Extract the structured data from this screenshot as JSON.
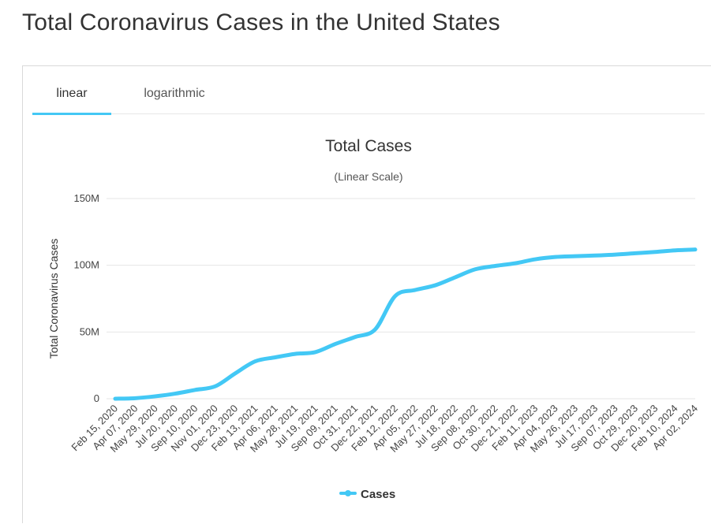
{
  "page": {
    "title": "Total Coronavirus Cases in the United States"
  },
  "tabs": [
    {
      "label": "linear",
      "active": true
    },
    {
      "label": "logarithmic",
      "active": false
    }
  ],
  "colors": {
    "accent": "#43c8f5",
    "gridline": "#e6e6e6",
    "text": "#333333"
  },
  "chart_data": {
    "type": "line",
    "title": "Total Cases",
    "subtitle": "(Linear Scale)",
    "xlabel": "",
    "ylabel": "Total Coronavirus Cases",
    "ylim": [
      0,
      150000000
    ],
    "y_ticks": [
      {
        "value": 0,
        "label": "0"
      },
      {
        "value": 50000000,
        "label": "50M"
      },
      {
        "value": 100000000,
        "label": "100M"
      },
      {
        "value": 150000000,
        "label": "150M"
      }
    ],
    "x_tick_labels": [
      "Feb 15, 2020",
      "Apr 07, 2020",
      "May 29, 2020",
      "Jul 20, 2020",
      "Sep 10, 2020",
      "Nov 01, 2020",
      "Dec 23, 2020",
      "Feb 13, 2021",
      "Apr 06, 2021",
      "May 28, 2021",
      "Jul 19, 2021",
      "Sep 09, 2021",
      "Oct 31, 2021",
      "Dec 22, 2021",
      "Feb 12, 2022",
      "Apr 05, 2022",
      "May 27, 2022",
      "Jul 18, 2022",
      "Sep 08, 2022",
      "Oct 30, 2022",
      "Dec 21, 2022",
      "Feb 11, 2023",
      "Apr 04, 2023",
      "May 26, 2023",
      "Jul 17, 2023",
      "Sep 07, 2023",
      "Oct 29, 2023",
      "Dec 20, 2023",
      "Feb 10, 2024",
      "Apr 02, 2024"
    ],
    "series": [
      {
        "name": "Cases",
        "color": "#43c8f5",
        "values": [
          0,
          400000,
          1800000,
          3800000,
          6600000,
          9300000,
          19000000,
          28000000,
          31000000,
          33600000,
          34900000,
          41000000,
          46300000,
          52000000,
          77000000,
          81500000,
          85000000,
          91000000,
          97000000,
          99500000,
          101500000,
          104500000,
          106200000,
          106800000,
          107300000,
          108000000,
          109000000,
          110000000,
          111200000,
          111800000
        ]
      }
    ],
    "legend": {
      "position": "bottom-center",
      "label": "Cases"
    },
    "grid": true
  }
}
